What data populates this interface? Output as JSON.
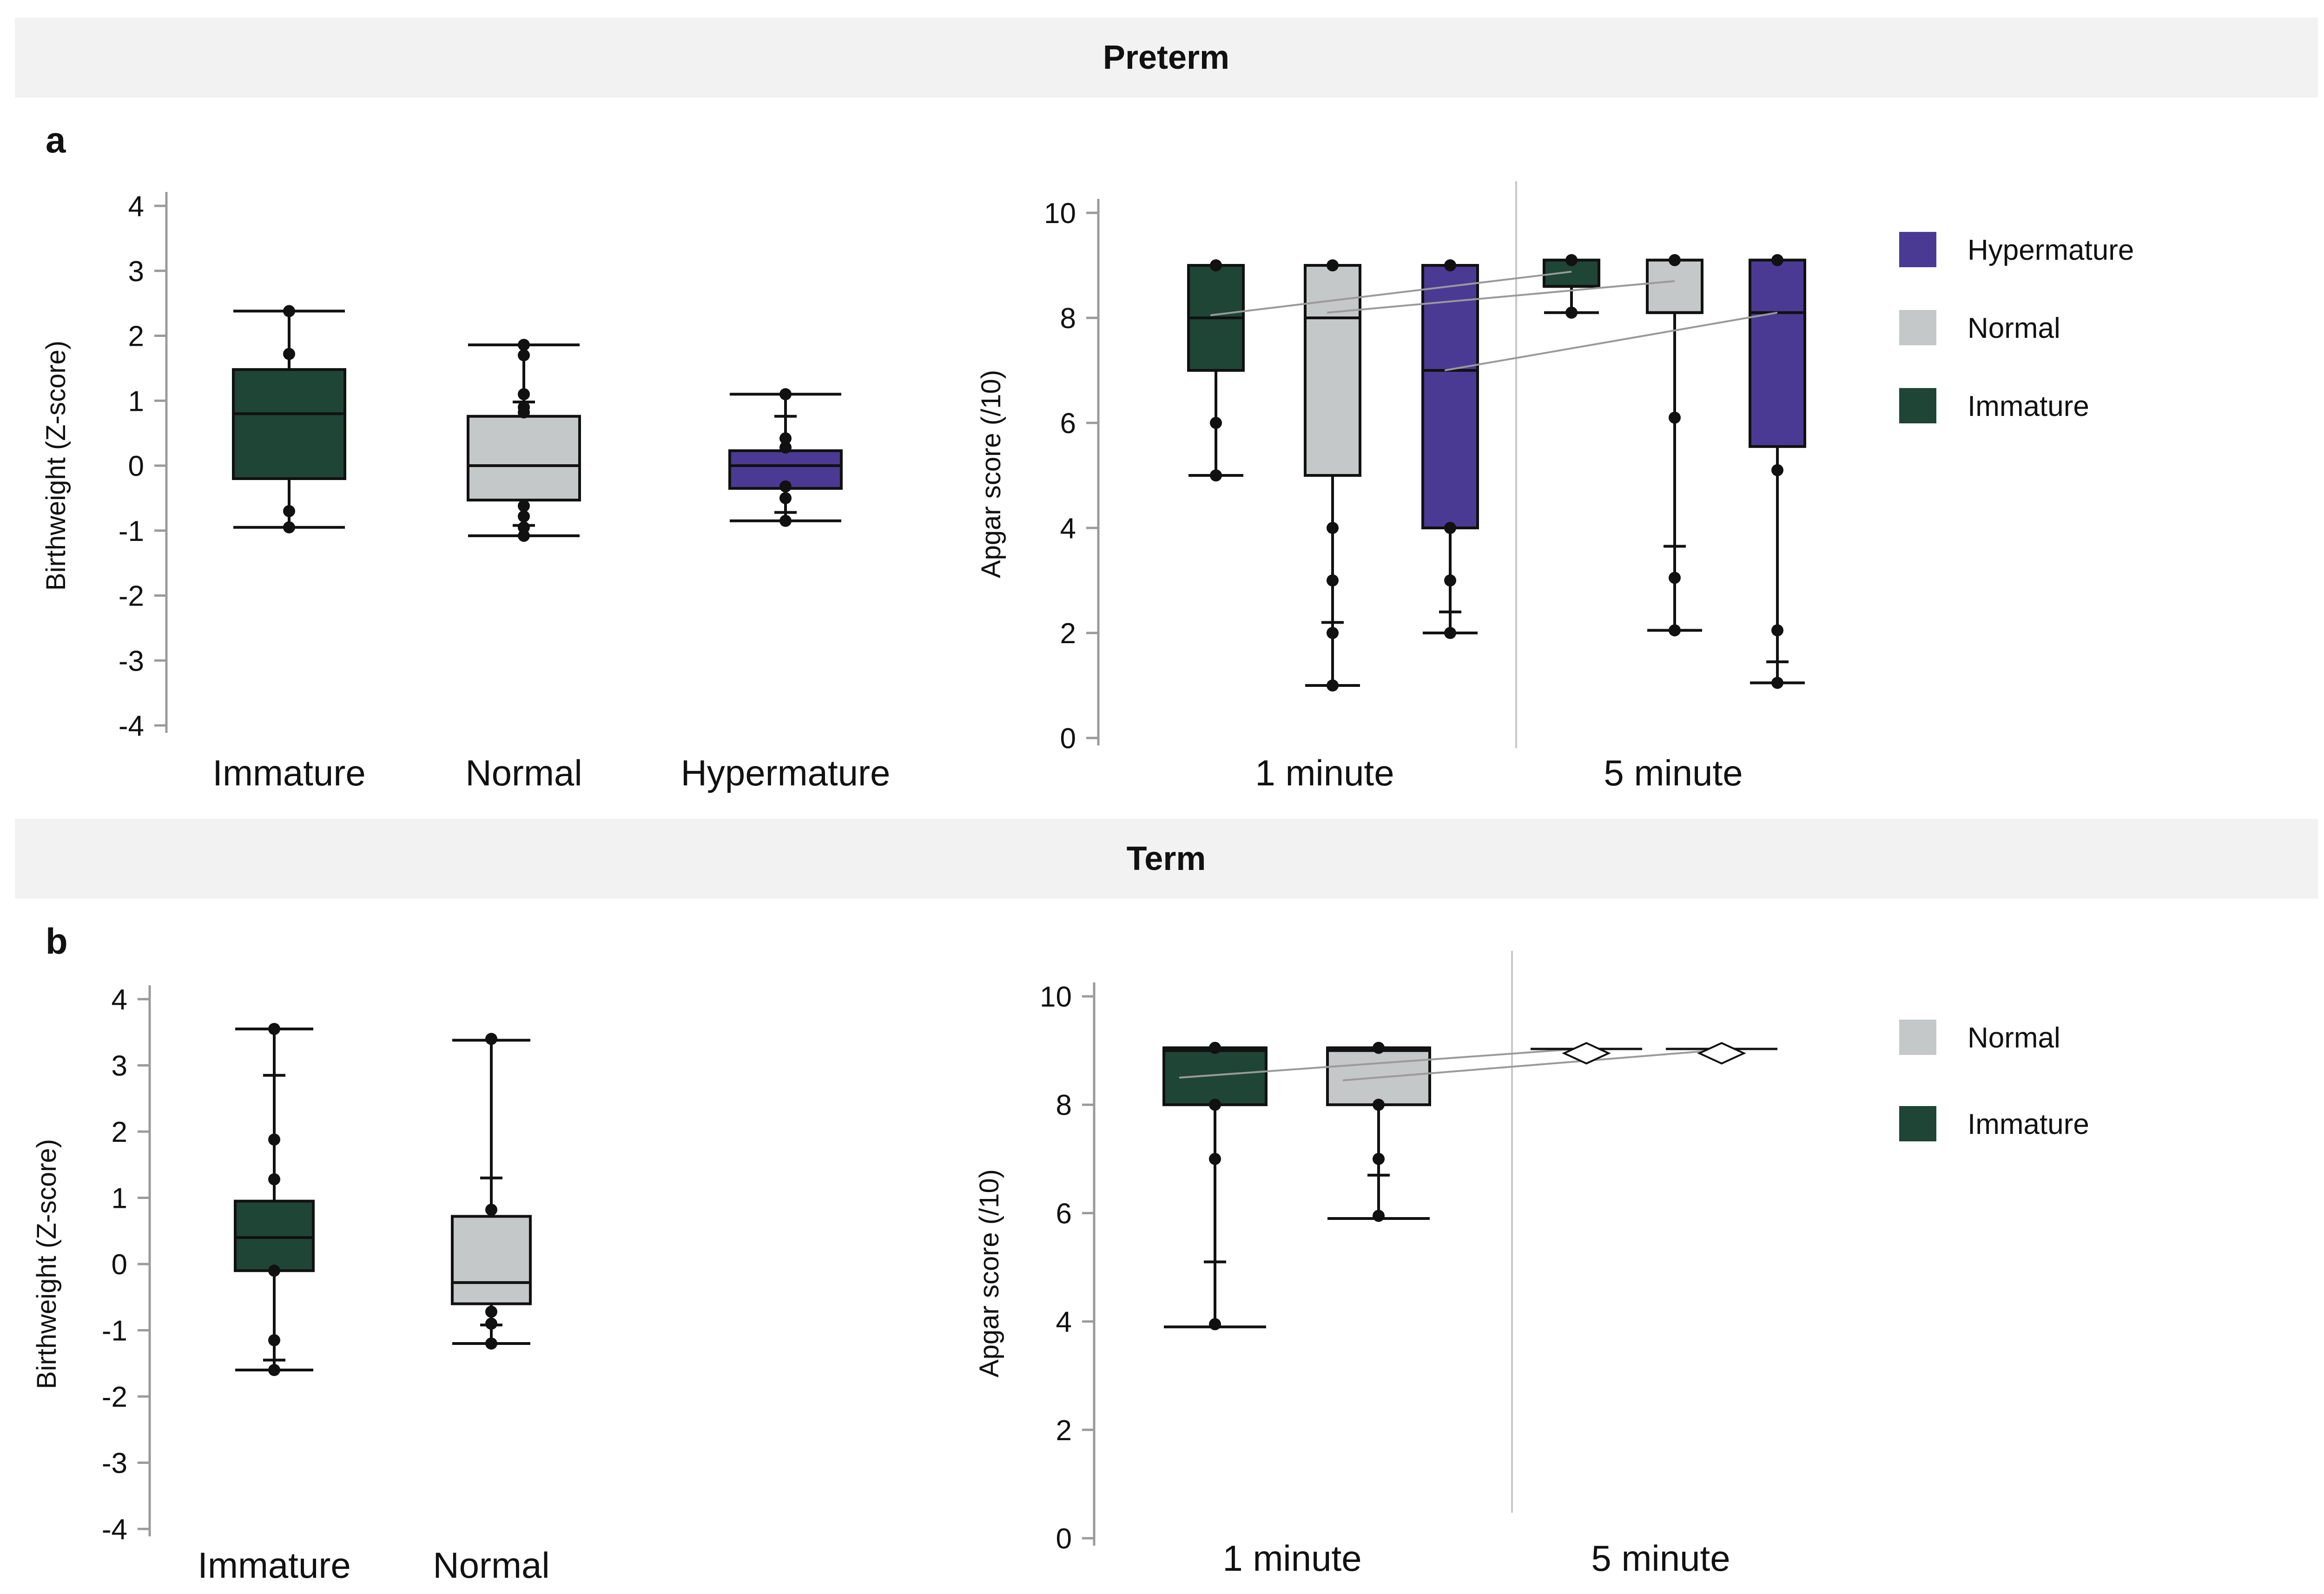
{
  "colors": {
    "immature": "#1f4537",
    "normal": "#c5c8c8",
    "hypermature": "#4b3a93",
    "header_bg": "#f2f2f2"
  },
  "sections": [
    {
      "id": "preterm",
      "label": "Preterm",
      "panel_letter": "a"
    },
    {
      "id": "term",
      "label": "Term",
      "panel_letter": "b"
    }
  ],
  "chart_data": [
    {
      "id": "preterm-birthweight",
      "type": "box",
      "section": "preterm",
      "ylabel": "Birthweight (Z-score)",
      "ylim": [
        -4,
        4
      ],
      "yticks": [
        -4,
        -3,
        -2,
        -1,
        0,
        1,
        2,
        3,
        4
      ],
      "categories": [
        "Immature",
        "Normal",
        "Hypermature"
      ],
      "boxes": [
        {
          "name": "Immature",
          "color": "immature",
          "whislo": -0.95,
          "q1": -0.2,
          "med": 0.8,
          "q3": 1.48,
          "whishi": 2.38,
          "outliers": [
            -0.95,
            -0.7,
            1.72,
            2.38
          ],
          "tick_marks": []
        },
        {
          "name": "Normal",
          "color": "normal",
          "whislo": -1.08,
          "q1": -0.53,
          "med": 0.0,
          "q3": 0.76,
          "whishi": 1.86,
          "outliers": [
            -1.08,
            -0.95,
            -0.78,
            -0.62,
            0.82,
            0.9,
            1.1,
            1.7,
            1.86
          ],
          "tick_marks": [
            -0.92,
            0.98
          ]
        },
        {
          "name": "Hypermature",
          "color": "hypermature",
          "whislo": -0.85,
          "q1": -0.35,
          "med": 0.0,
          "q3": 0.23,
          "whishi": 1.1,
          "outliers": [
            -0.85,
            -0.5,
            -0.32,
            0.28,
            0.42,
            1.1
          ],
          "tick_marks": [
            -0.72,
            0.76
          ]
        }
      ]
    },
    {
      "id": "preterm-apgar",
      "type": "box",
      "section": "preterm",
      "ylabel": "Apgar score (/10)",
      "ylim": [
        0,
        10
      ],
      "yticks": [
        0,
        2,
        4,
        6,
        8,
        10
      ],
      "groups": [
        "1 minute",
        "5 minute"
      ],
      "legend": [
        "Hypermature",
        "Normal",
        "Immature"
      ],
      "boxes": [
        {
          "group": "1 minute",
          "name": "Immature",
          "color": "immature",
          "whislo": 5,
          "q1": 7,
          "med": 8,
          "q3": 9,
          "whishi": 9,
          "outliers": [
            5,
            6,
            9
          ],
          "tick_marks": []
        },
        {
          "group": "1 minute",
          "name": "Normal",
          "color": "normal",
          "whislo": 1,
          "q1": 5,
          "med": 8,
          "q3": 9,
          "whishi": 9,
          "outliers": [
            1,
            2,
            3,
            4,
            9
          ],
          "tick_marks": [
            2.2
          ]
        },
        {
          "group": "1 minute",
          "name": "Hypermature",
          "color": "hypermature",
          "whislo": 2,
          "q1": 4,
          "med": 7,
          "q3": 9,
          "whishi": 9,
          "outliers": [
            2,
            3,
            4,
            9
          ],
          "tick_marks": [
            2.4
          ]
        },
        {
          "group": "5 minute",
          "name": "Immature",
          "color": "immature",
          "whislo": 8.1,
          "q1": 8.6,
          "med": 8.6,
          "q3": 9.1,
          "whishi": 9.1,
          "outliers": [
            8.1,
            9.1
          ],
          "tick_marks": []
        },
        {
          "group": "5 minute",
          "name": "Normal",
          "color": "normal",
          "whislo": 2.05,
          "q1": 8.1,
          "med": 8.1,
          "q3": 9.1,
          "whishi": 9.1,
          "outliers": [
            2.05,
            3.05,
            6.1,
            9.1
          ],
          "tick_marks": [
            3.65
          ]
        },
        {
          "group": "5 minute",
          "name": "Hypermature",
          "color": "hypermature",
          "whislo": 1.05,
          "q1": 5.55,
          "med": 8.1,
          "q3": 9.1,
          "whishi": 9.1,
          "outliers": [
            1.05,
            2.05,
            5.1,
            9.1
          ],
          "tick_marks": [
            1.45
          ]
        }
      ],
      "mean_lines": [
        {
          "name": "Immature",
          "from": 8.05,
          "to": 8.88
        },
        {
          "name": "Normal",
          "from": 8.1,
          "to": 8.7
        },
        {
          "name": "Hypermature",
          "from": 7.0,
          "to": 8.1
        }
      ]
    },
    {
      "id": "term-birthweight",
      "type": "box",
      "section": "term",
      "ylabel": "Birthweight (Z-score)",
      "ylim": [
        -4,
        4
      ],
      "yticks": [
        -4,
        -3,
        -2,
        -1,
        0,
        1,
        2,
        3,
        4
      ],
      "categories": [
        "Immature",
        "Normal"
      ],
      "boxes": [
        {
          "name": "Immature",
          "color": "immature",
          "whislo": -1.6,
          "q1": -0.1,
          "med": 0.4,
          "q3": 0.95,
          "whishi": 3.55,
          "outliers": [
            -1.6,
            -1.15,
            -0.1,
            1.28,
            1.88,
            3.55
          ],
          "tick_marks": [
            -1.45,
            2.85
          ]
        },
        {
          "name": "Normal",
          "color": "normal",
          "whislo": -1.2,
          "q1": -0.6,
          "med": -0.28,
          "q3": 0.72,
          "whishi": 3.38,
          "outliers": [
            -1.2,
            -0.9,
            -0.72,
            0.82,
            3.4
          ],
          "tick_marks": [
            -0.92,
            1.3
          ]
        }
      ]
    },
    {
      "id": "term-apgar",
      "type": "box",
      "section": "term",
      "ylabel": "Apgar score (/10)",
      "ylim": [
        0,
        10
      ],
      "yticks": [
        0,
        2,
        4,
        6,
        8,
        10
      ],
      "groups": [
        "1 minute",
        "5 minute"
      ],
      "legend": [
        "Normal",
        "Immature"
      ],
      "boxes": [
        {
          "group": "1 minute",
          "name": "Immature",
          "color": "immature",
          "whislo": 3.9,
          "q1": 8,
          "med": 9,
          "q3": 9.05,
          "whishi": 9.05,
          "outliers": [
            3.95,
            7.0,
            8.0,
            9.05
          ],
          "tick_marks": [
            5.1
          ]
        },
        {
          "group": "1 minute",
          "name": "Normal",
          "color": "normal",
          "whislo": 5.9,
          "q1": 8,
          "med": 9,
          "q3": 9.05,
          "whishi": 9.05,
          "outliers": [
            5.95,
            7.0,
            8.0,
            9.05
          ],
          "tick_marks": [
            6.7
          ]
        }
      ],
      "five_minute_markers": [
        {
          "name": "Immature",
          "value": 8.95
        },
        {
          "name": "Normal",
          "value": 8.95
        }
      ],
      "mean_lines": [
        {
          "name": "Immature",
          "from": 8.5,
          "to": 9.03
        },
        {
          "name": "Normal",
          "from": 8.45,
          "to": 9.0
        }
      ]
    }
  ]
}
